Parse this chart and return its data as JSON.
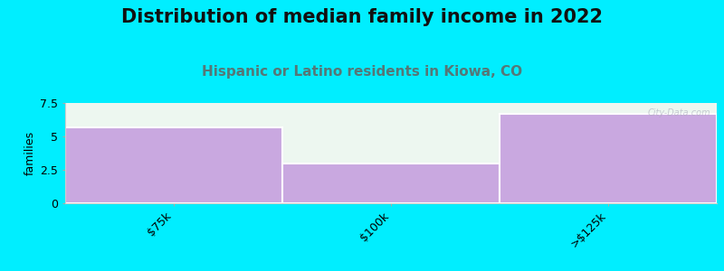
{
  "title": "Distribution of median family income in 2022",
  "subtitle": "Hispanic or Latino residents in Kiowa, CO",
  "categories": [
    "$75k",
    "$100k",
    ">$125k"
  ],
  "values": [
    5.7,
    3.0,
    6.7
  ],
  "bar_color": "#c9a8e0",
  "plot_bg_color": "#edf7f0",
  "fig_bg_color": "#00eeff",
  "title_color": "#111111",
  "subtitle_color": "#557777",
  "ylabel": "families",
  "ylim": [
    0,
    7.5
  ],
  "yticks": [
    0,
    2.5,
    5,
    7.5
  ],
  "title_fontsize": 15,
  "subtitle_fontsize": 11,
  "ylabel_fontsize": 9,
  "tick_fontsize": 9,
  "watermark": "City-Data.com"
}
